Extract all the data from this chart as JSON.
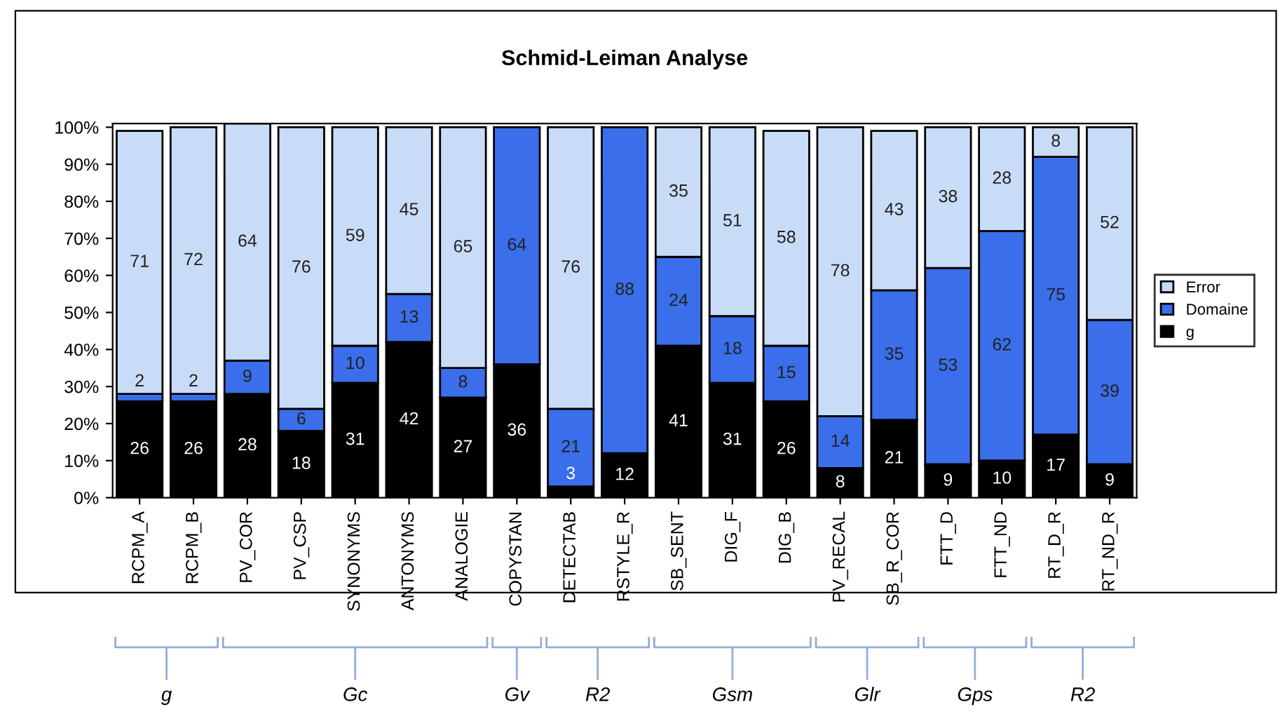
{
  "chart_data": {
    "type": "bar",
    "title": "Schmid-Leiman Analyse",
    "stacked": true,
    "categories": [
      "RCPM_A",
      "RCPM_B",
      "PV_COR",
      "PV_CSP",
      "SYNONYMS",
      "ANTONYMS",
      "ANALOGIE",
      "COPYSTAN",
      "DETECTAB",
      "RSTYLE_R",
      "SB_SENT",
      "DIG_F",
      "DIG_B",
      "PV_RECAL",
      "SB_R_COR",
      "FTT_D",
      "FTT_ND",
      "RT_D_R",
      "RT_ND_R"
    ],
    "series": [
      {
        "name": "g",
        "color": "#000000",
        "values": [
          26,
          26,
          28,
          18,
          31,
          42,
          27,
          36,
          3,
          12,
          41,
          31,
          26,
          8,
          21,
          9,
          10,
          17,
          9
        ]
      },
      {
        "name": "Domaine",
        "color": "#3a6eea",
        "values": [
          2,
          2,
          9,
          6,
          10,
          13,
          8,
          64,
          21,
          88,
          24,
          18,
          15,
          14,
          35,
          53,
          62,
          75,
          39
        ]
      },
      {
        "name": "Error",
        "color": "#c9dcf7",
        "values": [
          71,
          72,
          64,
          76,
          59,
          45,
          65,
          null,
          76,
          null,
          35,
          51,
          58,
          78,
          43,
          38,
          28,
          8,
          52
        ]
      }
    ],
    "ylim": [
      0,
      101
    ],
    "yticks": [
      {
        "value": 0,
        "label": "0%"
      },
      {
        "value": 10,
        "label": "10%"
      },
      {
        "value": 20,
        "label": "20%"
      },
      {
        "value": 30,
        "label": "30%"
      },
      {
        "value": 40,
        "label": "40%"
      },
      {
        "value": 50,
        "label": "50%"
      },
      {
        "value": 60,
        "label": "60%"
      },
      {
        "value": 70,
        "label": "70%"
      },
      {
        "value": 80,
        "label": "80%"
      },
      {
        "value": 90,
        "label": "90%"
      },
      {
        "value": 100,
        "label": "100%"
      }
    ],
    "data_labels": true,
    "legend": "right",
    "grid": false,
    "annotations": [
      "g",
      "Gc",
      "Gv",
      "R2",
      "Gsm",
      "Glr",
      "Gps",
      "R2"
    ]
  }
}
